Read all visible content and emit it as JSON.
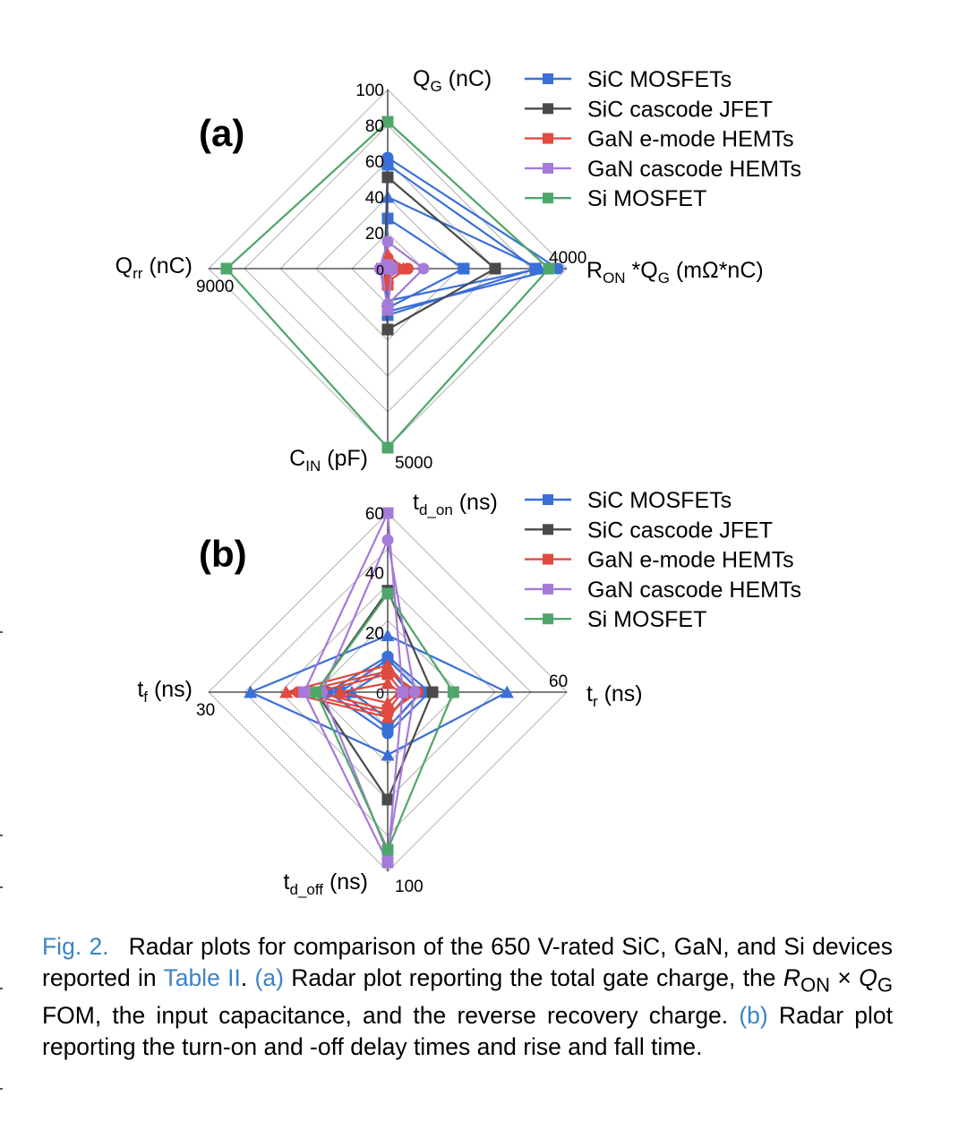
{
  "figure": {
    "panels": [
      {
        "label": "(a)",
        "axes": [
          {
            "title": "Q",
            "sub": "G",
            "unit": "(nC)",
            "max_label": "100",
            "max": 100
          },
          {
            "title": "R",
            "sub": "ON",
            "unit": "*Q",
            "sub2": "G",
            "unit2": " (mΩ*nC)",
            "max_label": "4000",
            "max": 4000
          },
          {
            "title": "C",
            "sub": "IN",
            "unit": "(pF)",
            "max_label": "5000",
            "max": 5000
          },
          {
            "title": "Q",
            "sub": "rr",
            "unit": "(nC)",
            "max_label": "9000",
            "max": 9000
          }
        ],
        "top_ticks": [
          "20",
          "40",
          "60",
          "80",
          "100"
        ],
        "zero_label": "0"
      },
      {
        "label": "(b)",
        "axes": [
          {
            "title": "t",
            "sub": "d_on",
            "unit": "(ns)",
            "max_label": "60",
            "max": 60
          },
          {
            "title": "t",
            "sub": "r",
            "unit": "(ns)",
            "max_label": "60",
            "max": 60
          },
          {
            "title": "t",
            "sub": "d_off",
            "unit": "(ns)",
            "max_label": "100",
            "max": 100
          },
          {
            "title": "t",
            "sub": "f",
            "unit": "(ns)",
            "max_label": "30",
            "max": 30
          }
        ],
        "top_ticks": [
          "20",
          "40",
          "60"
        ],
        "zero_label": "0"
      }
    ],
    "legend": [
      {
        "name": "SiC MOSFETs",
        "color": "#3a6fd8"
      },
      {
        "name": "SiC cascode JFET",
        "color": "#4a4a4a"
      },
      {
        "name": "GaN e-mode HEMTs",
        "color": "#e04a3f"
      },
      {
        "name": "GaN cascode HEMTs",
        "color": "#a57ad8"
      },
      {
        "name": "Si MOSFET",
        "color": "#4fa66a"
      }
    ]
  },
  "chart_data": [
    {
      "type": "radar",
      "title": "(a)",
      "axes": [
        "QG (nC)",
        "RON*QG (mΩ*nC)",
        "CIN (pF)",
        "Qrr (nC)"
      ],
      "ranges": [
        [
          0,
          100
        ],
        [
          0,
          4000
        ],
        [
          0,
          5000
        ],
        [
          0,
          9000
        ]
      ],
      "series": [
        {
          "name": "SiC MOSFETs",
          "color": "#3a6fd8",
          "marker": "circle",
          "values": [
            62,
            3800,
            1200,
            100
          ]
        },
        {
          "name": "SiC MOSFETs",
          "color": "#3a6fd8",
          "marker": "square",
          "values": [
            58,
            3300,
            1300,
            150
          ]
        },
        {
          "name": "SiC MOSFETs",
          "color": "#3a6fd8",
          "marker": "triangle",
          "values": [
            40,
            3400,
            900,
            80
          ]
        },
        {
          "name": "SiC MOSFETs",
          "color": "#3a6fd8",
          "marker": "square",
          "values": [
            28,
            1700,
            1100,
            120
          ]
        },
        {
          "name": "SiC cascode JFET",
          "color": "#4a4a4a",
          "marker": "square",
          "values": [
            51,
            2400,
            1700,
            150
          ]
        },
        {
          "name": "GaN e-mode HEMTs",
          "color": "#e04a3f",
          "marker": "circle",
          "values": [
            6,
            450,
            350,
            0
          ]
        },
        {
          "name": "GaN e-mode HEMTs",
          "color": "#e04a3f",
          "marker": "square",
          "values": [
            3,
            150,
            450,
            0
          ]
        },
        {
          "name": "GaN e-mode HEMTs",
          "color": "#e04a3f",
          "marker": "triangle",
          "values": [
            8,
            350,
            250,
            0
          ]
        },
        {
          "name": "GaN cascode HEMTs",
          "color": "#a57ad8",
          "marker": "circle",
          "values": [
            15,
            800,
            1000,
            400
          ]
        },
        {
          "name": "GaN cascode HEMTs",
          "color": "#a57ad8",
          "marker": "square",
          "values": [
            2,
            100,
            1150,
            300
          ]
        },
        {
          "name": "Si MOSFET",
          "color": "#4fa66a",
          "marker": "square",
          "values": [
            82,
            3600,
            5000,
            8100
          ]
        }
      ]
    },
    {
      "type": "radar",
      "title": "(b)",
      "axes": [
        "td_on (ns)",
        "tr (ns)",
        "td_off (ns)",
        "tf (ns)"
      ],
      "ranges": [
        [
          0,
          60
        ],
        [
          0,
          60
        ],
        [
          0,
          100
        ],
        [
          0,
          30
        ]
      ],
      "series": [
        {
          "name": "SiC MOSFETs",
          "color": "#3a6fd8",
          "marker": "triangle",
          "values": [
            19,
            40,
            35,
            23
          ]
        },
        {
          "name": "SiC MOSFETs",
          "color": "#3a6fd8",
          "marker": "circle",
          "values": [
            12,
            14,
            23,
            10
          ]
        },
        {
          "name": "SiC MOSFETs",
          "color": "#3a6fd8",
          "marker": "square",
          "values": [
            11,
            11,
            20,
            8
          ]
        },
        {
          "name": "SiC MOSFETs",
          "color": "#3a6fd8",
          "marker": "triangle",
          "values": [
            8,
            7,
            15,
            6
          ]
        },
        {
          "name": "SiC cascode JFET",
          "color": "#4a4a4a",
          "marker": "square",
          "values": [
            34,
            15,
            60,
            12
          ]
        },
        {
          "name": "GaN e-mode HEMTs",
          "color": "#e04a3f",
          "marker": "triangle",
          "values": [
            9,
            8,
            14,
            17
          ]
        },
        {
          "name": "GaN e-mode HEMTs",
          "color": "#e04a3f",
          "marker": "circle",
          "values": [
            7,
            10,
            12,
            15
          ]
        },
        {
          "name": "GaN e-mode HEMTs",
          "color": "#e04a3f",
          "marker": "square",
          "values": [
            6,
            5,
            10,
            12
          ]
        },
        {
          "name": "GaN e-mode HEMTs",
          "color": "#e04a3f",
          "marker": "triangle",
          "values": [
            3,
            4,
            6,
            8
          ]
        },
        {
          "name": "GaN cascode HEMTs",
          "color": "#a57ad8",
          "marker": "square",
          "values": [
            60,
            5,
            95,
            14
          ]
        },
        {
          "name": "GaN cascode HEMTs",
          "color": "#a57ad8",
          "marker": "circle",
          "values": [
            51,
            9,
            90,
            11
          ]
        },
        {
          "name": "Si MOSFET",
          "color": "#4fa66a",
          "marker": "square",
          "values": [
            33,
            22,
            88,
            12
          ]
        }
      ]
    }
  ],
  "caption": {
    "fig_label": "Fig. 2.",
    "t1": "Radar plots for comparison of the 650 V-rated SiC, GaN, and Si devices reported in ",
    "table_ref": "Table II",
    "t2": ". ",
    "a_ref": "(a)",
    "t3": " Radar plot reporting the total gate charge, the ",
    "r_sym": "R",
    "r_sub": "ON",
    "times": " × ",
    "q_sym": "Q",
    "q_sub": "G",
    "t4": " FOM, the input capacitance, and the reverse recovery charge. ",
    "b_ref": "(b)",
    "t5": " Radar plot reporting the turn-on and -off delay times and rise and fall time."
  }
}
